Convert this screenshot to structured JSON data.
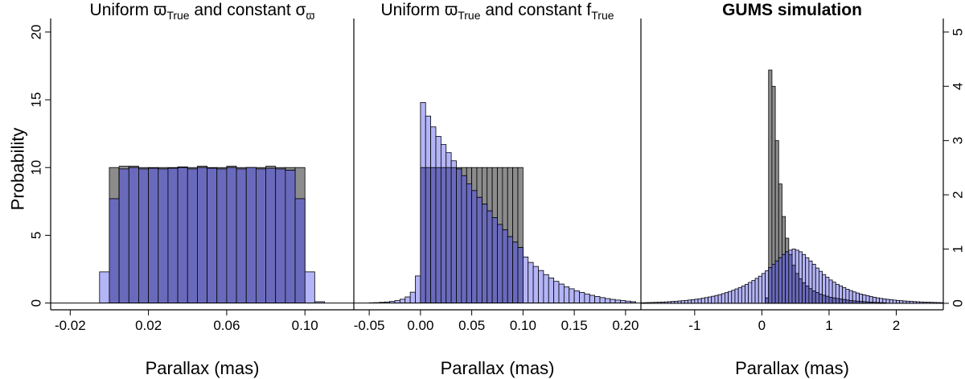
{
  "colors": {
    "gray": "#8c8c8c",
    "light": "#b4b4f8",
    "overlap": "#6a6abc",
    "border": "#000000"
  },
  "ylabel": "Probability",
  "chart_data": [
    {
      "type": "bar",
      "title": {
        "main": "Uniform ",
        "sym1": "ϖ",
        "sub1": "True",
        "mid": " and constant ",
        "sym2": "σ",
        "sub2": "ϖ"
      },
      "xlabel": "Parallax (mas)",
      "ylabel": "Probability",
      "xlim": [
        -0.03,
        0.125
      ],
      "ylim": [
        -0.5,
        21
      ],
      "yticks": [
        0,
        5,
        10,
        15,
        20
      ],
      "xticks": [
        -0.02,
        0.02,
        0.06,
        0.1
      ],
      "xtick_labels": [
        "-0.02",
        "0.02",
        "0.06",
        "0.10"
      ],
      "series": [
        {
          "name": "gray",
          "bins": [
            -0.005,
            0.0,
            0.005,
            0.01,
            0.015,
            0.02,
            0.025,
            0.03,
            0.035,
            0.04,
            0.045,
            0.05,
            0.055,
            0.06,
            0.065,
            0.07,
            0.075,
            0.08,
            0.085,
            0.09,
            0.095,
            0.1,
            0.105
          ],
          "values": [
            0,
            10.0,
            10.1,
            10.1,
            10.0,
            10.0,
            10.0,
            10.0,
            10.05,
            10.0,
            10.1,
            10.0,
            10.0,
            10.1,
            10.0,
            10.0,
            10.0,
            10.1,
            10.0,
            10.0,
            10.0,
            0,
            0
          ]
        },
        {
          "name": "light",
          "bins": [
            -0.005,
            0.0,
            0.005,
            0.01,
            0.015,
            0.02,
            0.025,
            0.03,
            0.035,
            0.04,
            0.045,
            0.05,
            0.055,
            0.06,
            0.065,
            0.07,
            0.075,
            0.08,
            0.085,
            0.09,
            0.095,
            0.1,
            0.105
          ],
          "values": [
            2.3,
            7.7,
            9.9,
            10.0,
            9.9,
            9.95,
            9.9,
            9.95,
            10.0,
            9.9,
            10.0,
            9.95,
            9.9,
            10.0,
            9.9,
            10.0,
            9.9,
            9.95,
            9.9,
            9.8,
            7.7,
            2.3,
            0.1
          ]
        }
      ]
    },
    {
      "type": "bar",
      "title": {
        "main": "Uniform ",
        "sym1": "ϖ",
        "sub1": "True",
        "mid": " and constant f",
        "sub2": "True"
      },
      "xlabel": "Parallax (mas)",
      "xlim": [
        -0.065,
        0.215
      ],
      "ylim": [
        -0.5,
        21
      ],
      "xticks": [
        -0.05,
        0.0,
        0.05,
        0.1,
        0.15,
        0.2
      ],
      "xtick_labels": [
        "-0.05",
        "0.00",
        "0.05",
        "0.10",
        "0.15",
        "0.20"
      ],
      "series": [
        {
          "name": "gray",
          "bin_start": 0.0,
          "bin_width": 0.005,
          "values": [
            10.0,
            10.0,
            10.0,
            10.0,
            10.0,
            10.0,
            10.0,
            10.0,
            10.0,
            10.0,
            10.0,
            10.0,
            10.0,
            10.0,
            10.0,
            10.0,
            10.0,
            10.0,
            10.0,
            10.0
          ]
        },
        {
          "name": "light",
          "bin_start": -0.05,
          "bin_width": 0.005,
          "values": [
            0.02,
            0.03,
            0.05,
            0.08,
            0.12,
            0.18,
            0.28,
            0.45,
            0.8,
            2.0,
            14.8,
            13.8,
            13.0,
            12.3,
            11.7,
            11.1,
            10.5,
            9.9,
            9.4,
            8.8,
            8.3,
            7.8,
            7.3,
            6.8,
            6.3,
            5.8,
            5.4,
            4.9,
            4.5,
            4.1,
            3.4,
            3.0,
            2.7,
            2.4,
            2.1,
            1.85,
            1.6,
            1.4,
            1.2,
            1.05,
            0.9,
            0.78,
            0.67,
            0.57,
            0.48,
            0.4,
            0.33,
            0.27,
            0.22,
            0.18,
            0.14,
            0.1
          ]
        }
      ]
    },
    {
      "type": "bar",
      "title": {
        "main": "GUMS simulation"
      },
      "xlabel": "Parallax (mas)",
      "xlim": [
        -1.8,
        2.7
      ],
      "ylim": [
        -0.12,
        5.25
      ],
      "yticks": [
        0,
        1,
        2,
        3,
        4,
        5
      ],
      "xticks": [
        -1,
        0,
        1,
        2
      ],
      "xtick_labels": [
        "-1",
        "0",
        "1",
        "2"
      ],
      "series": [
        {
          "name": "gray",
          "bin_start": 0.05,
          "bin_width": 0.05,
          "values": [
            0.1,
            4.3,
            4.0,
            3.0,
            2.2,
            1.6,
            1.2,
            0.9,
            0.7,
            0.55,
            0.45,
            0.38,
            0.32,
            0.27,
            0.23,
            0.2,
            0.17,
            0.15,
            0.13,
            0.11,
            0.1,
            0.09,
            0.08,
            0.07,
            0.06,
            0.05,
            0.045,
            0.04,
            0.035,
            0.03,
            0.025,
            0.02,
            0.018,
            0.015,
            0.012,
            0.01
          ]
        },
        {
          "name": "light",
          "bin_start": -1.8,
          "bin_width": 0.05,
          "values": [
            0.01,
            0.012,
            0.014,
            0.016,
            0.018,
            0.02,
            0.023,
            0.026,
            0.03,
            0.034,
            0.038,
            0.043,
            0.048,
            0.054,
            0.06,
            0.067,
            0.075,
            0.084,
            0.094,
            0.105,
            0.117,
            0.13,
            0.145,
            0.16,
            0.178,
            0.197,
            0.218,
            0.24,
            0.265,
            0.29,
            0.32,
            0.35,
            0.385,
            0.42,
            0.46,
            0.5,
            0.55,
            0.6,
            0.66,
            0.72,
            0.78,
            0.84,
            0.9,
            0.95,
            0.98,
            1.0,
            0.98,
            0.95,
            0.9,
            0.84,
            0.78,
            0.72,
            0.65,
            0.59,
            0.53,
            0.48,
            0.43,
            0.39,
            0.35,
            0.32,
            0.29,
            0.26,
            0.235,
            0.21,
            0.19,
            0.17,
            0.155,
            0.14,
            0.125,
            0.112,
            0.1,
            0.09,
            0.081,
            0.073,
            0.066,
            0.059,
            0.053,
            0.048,
            0.043,
            0.039,
            0.035,
            0.031,
            0.028,
            0.025,
            0.022,
            0.02,
            0.018,
            0.016,
            0.014,
            0.012
          ]
        }
      ]
    }
  ]
}
